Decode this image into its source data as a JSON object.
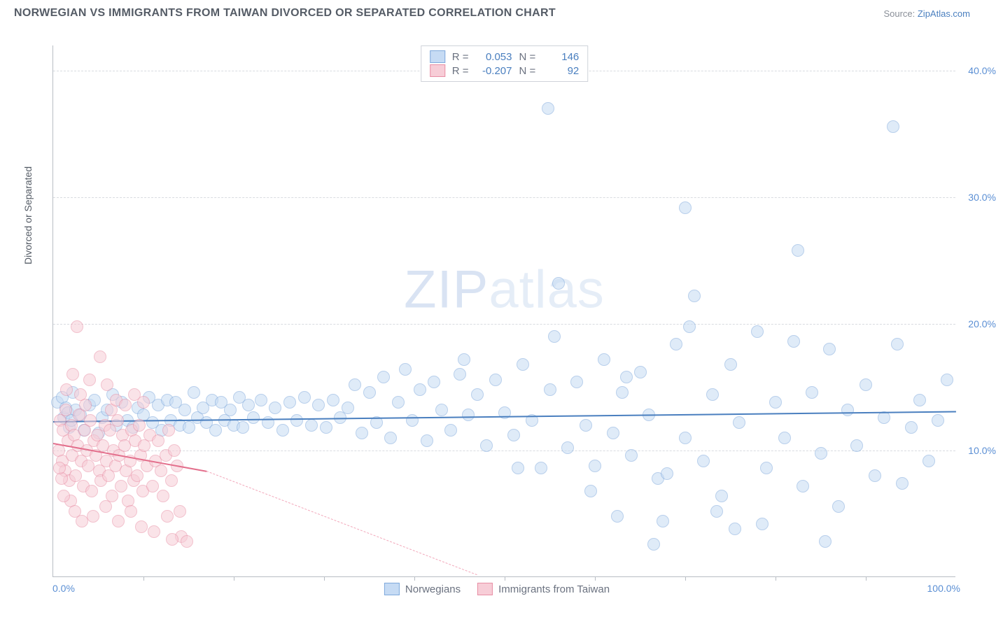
{
  "header": {
    "title": "NORWEGIAN VS IMMIGRANTS FROM TAIWAN DIVORCED OR SEPARATED CORRELATION CHART",
    "source_prefix": "Source: ",
    "source_name": "ZipAtlas.com"
  },
  "watermark_a": "ZIP",
  "watermark_b": "atlas",
  "chart": {
    "type": "scatter",
    "y_axis_title": "Divorced or Separated",
    "xlim": [
      0,
      100
    ],
    "ylim": [
      0,
      42
    ],
    "x_label_min": "0.0%",
    "x_label_max": "100.0%",
    "xticks": [
      10,
      20,
      30,
      40,
      50,
      60,
      70,
      80,
      90
    ],
    "yticks": [
      {
        "v": 10,
        "label": "10.0%"
      },
      {
        "v": 20,
        "label": "20.0%"
      },
      {
        "v": 30,
        "label": "30.0%"
      },
      {
        "v": 40,
        "label": "40.0%"
      }
    ],
    "grid_color": "#d8dbe0",
    "axis_color": "#b8bdc4",
    "background": "#ffffff",
    "marker_radius": 9,
    "marker_stroke": 1.5,
    "series": [
      {
        "name": "Norwegians",
        "fill": "#c6dbf4",
        "stroke": "#7fa9dc",
        "fill_opacity": 0.55,
        "R": "0.053",
        "N": "146",
        "trend": {
          "x1": 0,
          "y1": 12.3,
          "x2": 100,
          "y2": 13.1,
          "color": "#4a7fbf",
          "width": 2.5,
          "dash": false
        },
        "points": [
          [
            0.5,
            13.8
          ],
          [
            1.0,
            14.2
          ],
          [
            1.2,
            12.6
          ],
          [
            1.4,
            13.4
          ],
          [
            1.6,
            13.0
          ],
          [
            1.8,
            11.8
          ],
          [
            2.0,
            12.4
          ],
          [
            2.2,
            14.6
          ],
          [
            2.5,
            13.2
          ],
          [
            3.0,
            12.8
          ],
          [
            3.4,
            11.6
          ],
          [
            4.0,
            13.6
          ],
          [
            4.6,
            14.0
          ],
          [
            5.0,
            11.4
          ],
          [
            5.4,
            12.6
          ],
          [
            6.0,
            13.2
          ],
          [
            6.6,
            14.4
          ],
          [
            7.0,
            12.0
          ],
          [
            7.6,
            13.8
          ],
          [
            8.2,
            12.4
          ],
          [
            8.8,
            11.8
          ],
          [
            9.4,
            13.4
          ],
          [
            10.0,
            12.8
          ],
          [
            10.6,
            14.2
          ],
          [
            11.0,
            12.2
          ],
          [
            11.6,
            13.6
          ],
          [
            12.0,
            11.6
          ],
          [
            12.6,
            14.0
          ],
          [
            13.0,
            12.4
          ],
          [
            13.6,
            13.8
          ],
          [
            14.0,
            12.0
          ],
          [
            14.6,
            13.2
          ],
          [
            15.0,
            11.8
          ],
          [
            15.6,
            14.6
          ],
          [
            16.0,
            12.6
          ],
          [
            16.6,
            13.4
          ],
          [
            17.0,
            12.2
          ],
          [
            17.6,
            14.0
          ],
          [
            18.0,
            11.6
          ],
          [
            18.6,
            13.8
          ],
          [
            19.0,
            12.4
          ],
          [
            19.6,
            13.2
          ],
          [
            20.0,
            12.0
          ],
          [
            20.6,
            14.2
          ],
          [
            21.0,
            11.8
          ],
          [
            21.6,
            13.6
          ],
          [
            22.2,
            12.6
          ],
          [
            23.0,
            14.0
          ],
          [
            23.8,
            12.2
          ],
          [
            24.6,
            13.4
          ],
          [
            25.4,
            11.6
          ],
          [
            26.2,
            13.8
          ],
          [
            27.0,
            12.4
          ],
          [
            27.8,
            14.2
          ],
          [
            28.6,
            12.0
          ],
          [
            29.4,
            13.6
          ],
          [
            30.2,
            11.8
          ],
          [
            31.0,
            14.0
          ],
          [
            31.8,
            12.6
          ],
          [
            32.6,
            13.4
          ],
          [
            33.4,
            15.2
          ],
          [
            34.2,
            11.4
          ],
          [
            35.0,
            14.6
          ],
          [
            35.8,
            12.2
          ],
          [
            36.6,
            15.8
          ],
          [
            37.4,
            11.0
          ],
          [
            38.2,
            13.8
          ],
          [
            39.0,
            16.4
          ],
          [
            39.8,
            12.4
          ],
          [
            40.6,
            14.8
          ],
          [
            41.4,
            10.8
          ],
          [
            42.2,
            15.4
          ],
          [
            43.0,
            13.2
          ],
          [
            44.0,
            11.6
          ],
          [
            45.0,
            16.0
          ],
          [
            46.0,
            12.8
          ],
          [
            47.0,
            14.4
          ],
          [
            48.0,
            10.4
          ],
          [
            49.0,
            15.6
          ],
          [
            50.0,
            13.0
          ],
          [
            51.0,
            11.2
          ],
          [
            52.0,
            16.8
          ],
          [
            53.0,
            12.4
          ],
          [
            54.0,
            8.6
          ],
          [
            55.0,
            14.8
          ],
          [
            56.0,
            23.2
          ],
          [
            54.8,
            37.0
          ],
          [
            57.0,
            10.2
          ],
          [
            58.0,
            15.4
          ],
          [
            59.0,
            12.0
          ],
          [
            60.0,
            8.8
          ],
          [
            61.0,
            17.2
          ],
          [
            62.0,
            11.4
          ],
          [
            63.0,
            14.6
          ],
          [
            64.0,
            9.6
          ],
          [
            65.0,
            16.2
          ],
          [
            66.0,
            12.8
          ],
          [
            67.0,
            7.8
          ],
          [
            68.0,
            8.2
          ],
          [
            69.0,
            18.4
          ],
          [
            70.0,
            11.0
          ],
          [
            71.0,
            22.2
          ],
          [
            72.0,
            9.2
          ],
          [
            73.0,
            14.4
          ],
          [
            74.0,
            6.4
          ],
          [
            75.0,
            16.8
          ],
          [
            76.0,
            12.2
          ],
          [
            78.0,
            19.4
          ],
          [
            70.0,
            29.2
          ],
          [
            79.0,
            8.6
          ],
          [
            80.0,
            13.8
          ],
          [
            81.0,
            11.0
          ],
          [
            82.0,
            18.6
          ],
          [
            83.0,
            7.2
          ],
          [
            84.0,
            14.6
          ],
          [
            85.0,
            9.8
          ],
          [
            86.0,
            18.0
          ],
          [
            87.0,
            5.6
          ],
          [
            88.0,
            13.2
          ],
          [
            82.5,
            25.8
          ],
          [
            89.0,
            10.4
          ],
          [
            90.0,
            15.2
          ],
          [
            91.0,
            8.0
          ],
          [
            92.0,
            12.6
          ],
          [
            93.0,
            35.6
          ],
          [
            94.0,
            7.4
          ],
          [
            95.0,
            11.8
          ],
          [
            96.0,
            14.0
          ],
          [
            97.0,
            9.2
          ],
          [
            98.0,
            12.4
          ],
          [
            99.0,
            15.6
          ],
          [
            62.5,
            4.8
          ],
          [
            73.5,
            5.2
          ],
          [
            78.5,
            4.2
          ],
          [
            66.5,
            2.6
          ],
          [
            45.5,
            17.2
          ],
          [
            51.5,
            8.6
          ],
          [
            55.5,
            19.0
          ],
          [
            59.5,
            6.8
          ],
          [
            63.5,
            15.8
          ],
          [
            67.5,
            4.4
          ],
          [
            70.5,
            19.8
          ],
          [
            75.5,
            3.8
          ],
          [
            85.5,
            2.8
          ],
          [
            93.5,
            18.4
          ]
        ]
      },
      {
        "name": "Immigrants from Taiwan",
        "fill": "#f7cdd7",
        "stroke": "#e88fa5",
        "fill_opacity": 0.55,
        "R": "-0.207",
        "N": "92",
        "trend": {
          "x1": 0,
          "y1": 10.6,
          "x2": 17,
          "y2": 8.4,
          "color": "#e36f8c",
          "width": 2.5,
          "dash": false
        },
        "trend_ext": {
          "x1": 17,
          "y1": 8.4,
          "x2": 47,
          "y2": 0.2,
          "color": "#f2a7ba",
          "width": 1,
          "dash": true
        },
        "points": [
          [
            0.6,
            10.0
          ],
          [
            0.8,
            12.4
          ],
          [
            1.0,
            9.2
          ],
          [
            1.1,
            11.6
          ],
          [
            1.3,
            8.4
          ],
          [
            1.4,
            13.2
          ],
          [
            1.6,
            10.8
          ],
          [
            1.8,
            7.6
          ],
          [
            2.0,
            12.0
          ],
          [
            2.1,
            9.6
          ],
          [
            2.3,
            11.2
          ],
          [
            2.5,
            8.0
          ],
          [
            2.7,
            10.4
          ],
          [
            2.9,
            12.8
          ],
          [
            3.1,
            9.2
          ],
          [
            3.3,
            7.2
          ],
          [
            3.5,
            11.6
          ],
          [
            3.7,
            10.0
          ],
          [
            3.9,
            8.8
          ],
          [
            4.1,
            12.4
          ],
          [
            4.3,
            6.8
          ],
          [
            4.5,
            10.8
          ],
          [
            4.7,
            9.6
          ],
          [
            4.9,
            11.2
          ],
          [
            5.1,
            8.4
          ],
          [
            5.3,
            7.6
          ],
          [
            5.5,
            10.4
          ],
          [
            5.7,
            12.0
          ],
          [
            5.9,
            9.2
          ],
          [
            6.1,
            8.0
          ],
          [
            6.3,
            11.6
          ],
          [
            6.5,
            6.4
          ],
          [
            6.7,
            10.0
          ],
          [
            6.9,
            8.8
          ],
          [
            7.1,
            12.4
          ],
          [
            7.3,
            9.6
          ],
          [
            7.5,
            7.2
          ],
          [
            7.7,
            11.2
          ],
          [
            7.9,
            10.4
          ],
          [
            8.1,
            8.4
          ],
          [
            8.3,
            6.0
          ],
          [
            8.5,
            9.2
          ],
          [
            8.7,
            11.6
          ],
          [
            8.9,
            7.6
          ],
          [
            9.1,
            10.8
          ],
          [
            9.3,
            8.0
          ],
          [
            9.5,
            12.0
          ],
          [
            9.7,
            9.6
          ],
          [
            9.9,
            6.8
          ],
          [
            10.1,
            10.4
          ],
          [
            10.4,
            8.8
          ],
          [
            10.7,
            11.2
          ],
          [
            11.0,
            7.2
          ],
          [
            11.3,
            9.2
          ],
          [
            11.6,
            10.8
          ],
          [
            11.9,
            8.4
          ],
          [
            12.2,
            6.4
          ],
          [
            12.5,
            9.6
          ],
          [
            12.8,
            11.6
          ],
          [
            13.1,
            7.6
          ],
          [
            13.4,
            10.0
          ],
          [
            13.7,
            8.8
          ],
          [
            14.0,
            5.2
          ],
          [
            2.2,
            16.0
          ],
          [
            3.0,
            14.4
          ],
          [
            4.0,
            15.6
          ],
          [
            2.6,
            19.8
          ],
          [
            5.2,
            17.4
          ],
          [
            1.5,
            14.8
          ],
          [
            3.6,
            13.6
          ],
          [
            6.0,
            15.2
          ],
          [
            4.4,
            4.8
          ],
          [
            5.8,
            5.6
          ],
          [
            7.2,
            4.4
          ],
          [
            8.6,
            5.2
          ],
          [
            9.8,
            4.0
          ],
          [
            11.2,
            3.6
          ],
          [
            12.6,
            4.8
          ],
          [
            14.2,
            3.2
          ],
          [
            14.8,
            2.8
          ],
          [
            13.2,
            3.0
          ],
          [
            1.9,
            6.0
          ],
          [
            2.4,
            5.2
          ],
          [
            3.2,
            4.4
          ],
          [
            0.9,
            7.8
          ],
          [
            1.2,
            6.4
          ],
          [
            0.7,
            8.6
          ],
          [
            6.4,
            13.2
          ],
          [
            7.0,
            14.0
          ],
          [
            8.0,
            13.6
          ],
          [
            9.0,
            14.4
          ],
          [
            10.0,
            13.8
          ]
        ]
      }
    ]
  },
  "legend": {
    "r_label": "R =",
    "n_label": "N ="
  },
  "bottom_legend": {
    "a": "Norwegians",
    "b": "Immigrants from Taiwan"
  }
}
